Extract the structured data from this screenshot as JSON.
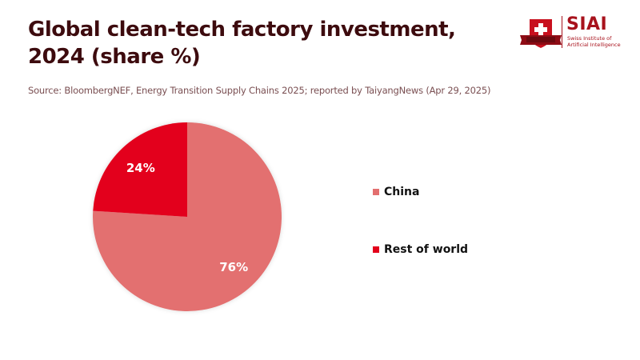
{
  "header": {
    "title_line1": "Global clean-tech factory investment,",
    "title_line2": "2024 (share %)",
    "source": "Source: BloombergNEF, Energy Transition Supply Chains 2025; reported by TaiyangNews (Apr 29, 2025)"
  },
  "logo": {
    "name": "SIAI",
    "line1": "Swiss Institute of",
    "line2": "Artificial Intelligence",
    "icon": "swiss-shield-icon"
  },
  "chart_data": {
    "type": "pie",
    "title": "Global clean-tech factory investment, 2024 (share %)",
    "categories": [
      "China",
      "Rest of world"
    ],
    "values": [
      76,
      24
    ],
    "labels": [
      "76%",
      "24%"
    ],
    "colors": [
      "#e36f6f",
      "#e3001b"
    ],
    "start_angle": "top, clockwise",
    "legend_placement": "right"
  }
}
